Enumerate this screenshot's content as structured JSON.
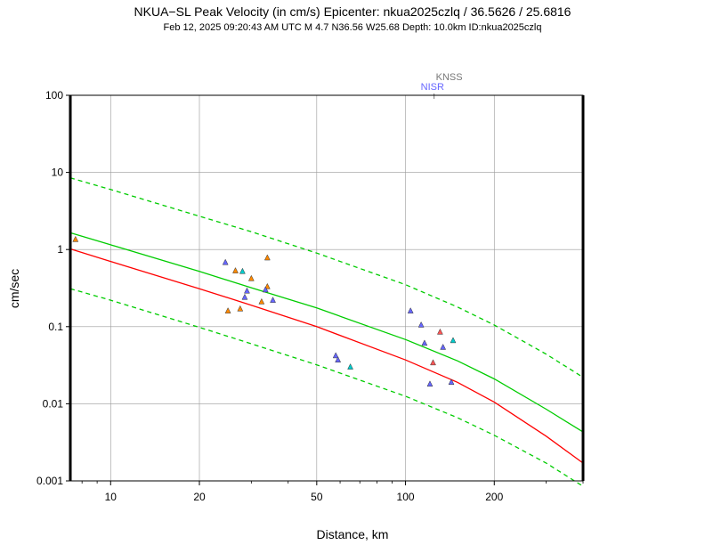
{
  "chart_data": {
    "type": "scatter",
    "title": "NKUA−SL Peak Velocity (in cm/s) Epicenter: nkua2025czlq / 36.5626 / 25.6816",
    "subtitle": "Feb 12, 2025 09:20:43 AM UTC    M 4.7    N36.56 W25.68    Depth: 10.0km    ID:nkua2025czlq",
    "xlabel": "Distance, km",
    "ylabel": "cm/sec",
    "xscale": "log",
    "yscale": "log",
    "xlim": [
      7.3,
      400
    ],
    "ylim": [
      0.001,
      100
    ],
    "grid": true,
    "x_ticks": [
      {
        "value": 10,
        "label": "10"
      },
      {
        "value": 20,
        "label": "20"
      },
      {
        "value": 50,
        "label": "50"
      },
      {
        "value": 100,
        "label": "100"
      },
      {
        "value": 200,
        "label": "200"
      }
    ],
    "y_ticks": [
      {
        "value": 0.001,
        "label": "0.001"
      },
      {
        "value": 0.01,
        "label": "0.01"
      },
      {
        "value": 0.1,
        "label": "0.1"
      },
      {
        "value": 1,
        "label": "1"
      },
      {
        "value": 10,
        "label": "10"
      },
      {
        "value": 100,
        "label": "100"
      }
    ],
    "curves": [
      {
        "style": "solid",
        "color": "#00cc00",
        "x": [
          7.3,
          10,
          20,
          30,
          50,
          100,
          150,
          200,
          300,
          400
        ],
        "y": [
          1.65,
          1.15,
          0.52,
          0.32,
          0.175,
          0.068,
          0.036,
          0.021,
          0.0085,
          0.0043
        ]
      },
      {
        "style": "solid",
        "color": "#ff0000",
        "x": [
          7.3,
          10,
          20,
          30,
          50,
          100,
          150,
          200,
          300,
          400
        ],
        "y": [
          1.02,
          0.7,
          0.31,
          0.19,
          0.1,
          0.037,
          0.019,
          0.0105,
          0.0038,
          0.0017
        ]
      },
      {
        "style": "dashed",
        "color": "#00cc00",
        "x": [
          7.3,
          10,
          20,
          30,
          50,
          100,
          150,
          200,
          300,
          400
        ],
        "y": [
          8.5,
          6.0,
          2.7,
          1.7,
          0.9,
          0.35,
          0.18,
          0.105,
          0.044,
          0.022
        ]
      },
      {
        "style": "dashed",
        "color": "#00cc00",
        "x": [
          7.3,
          10,
          20,
          30,
          50,
          100,
          150,
          200,
          300,
          400
        ],
        "y": [
          0.31,
          0.22,
          0.098,
          0.06,
          0.032,
          0.0125,
          0.0066,
          0.0039,
          0.0017,
          0.00085
        ]
      }
    ],
    "stations": [
      {
        "x": 7.6,
        "y": 1.35,
        "color": "#ff8800"
      },
      {
        "x": 24.5,
        "y": 0.68,
        "color": "#6666ff"
      },
      {
        "x": 26.5,
        "y": 0.53,
        "color": "#ff8800"
      },
      {
        "x": 28.0,
        "y": 0.52,
        "color": "#00cccc"
      },
      {
        "x": 30.0,
        "y": 0.42,
        "color": "#ff8800"
      },
      {
        "x": 34.0,
        "y": 0.78,
        "color": "#ff8800"
      },
      {
        "x": 34.0,
        "y": 0.33,
        "color": "#ff8800"
      },
      {
        "x": 33.5,
        "y": 0.3,
        "color": "#6666ff"
      },
      {
        "x": 29.0,
        "y": 0.29,
        "color": "#6666ff"
      },
      {
        "x": 28.5,
        "y": 0.24,
        "color": "#6666ff"
      },
      {
        "x": 35.5,
        "y": 0.22,
        "color": "#6666ff"
      },
      {
        "x": 32.5,
        "y": 0.21,
        "color": "#ff8800"
      },
      {
        "x": 27.5,
        "y": 0.17,
        "color": "#ff8800"
      },
      {
        "x": 25.0,
        "y": 0.16,
        "color": "#ff8800"
      },
      {
        "x": 58.0,
        "y": 0.042,
        "color": "#6666ff"
      },
      {
        "x": 59.0,
        "y": 0.037,
        "color": "#6666ff"
      },
      {
        "x": 65.0,
        "y": 0.03,
        "color": "#00cccc"
      },
      {
        "x": 104.0,
        "y": 0.16,
        "color": "#6666ff"
      },
      {
        "x": 113.0,
        "y": 0.105,
        "color": "#6666ff"
      },
      {
        "x": 131.0,
        "y": 0.085,
        "color": "#ff5555"
      },
      {
        "x": 145.0,
        "y": 0.066,
        "color": "#00cccc"
      },
      {
        "x": 116.0,
        "y": 0.061,
        "color": "#6666ff"
      },
      {
        "x": 134.0,
        "y": 0.054,
        "color": "#6666ff"
      },
      {
        "x": 124.0,
        "y": 0.034,
        "color": "#ff5555"
      },
      {
        "x": 121.0,
        "y": 0.018,
        "color": "#6666ff"
      },
      {
        "x": 143.0,
        "y": 0.019,
        "color": "#6666ff"
      }
    ],
    "off_scale_stations": [
      {
        "name": "KNSS",
        "x": 125,
        "color": "#777777"
      },
      {
        "name": "NISR",
        "x": 125,
        "color": "#6666ff"
      }
    ]
  }
}
